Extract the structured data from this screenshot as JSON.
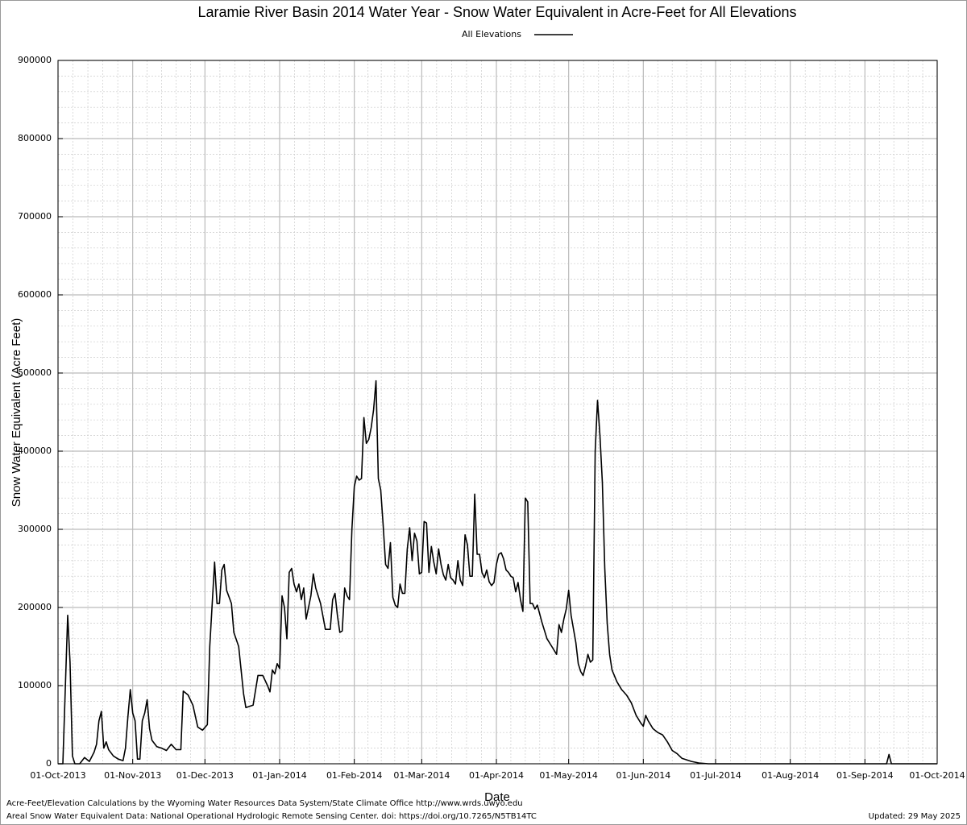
{
  "chart_data": {
    "type": "line",
    "title": "Laramie River Basin 2014 Water Year - Snow Water Equivalent in Acre-Feet for All Elevations",
    "x_label": "Date",
    "y_label": "Snow Water Equivalent (Acre Feet)",
    "footnotes": [
      "Acre-Feet/Elevation Calculations by the Wyoming Water Resources Data System/State Climate Office http://www.wrds.uwyo.edu",
      "Areal Snow Water Equivalent Data: National Operational Hydrologic Remote Sensing Center. doi: https://doi.org/10.7265/N5TB14TC"
    ],
    "updated": "Updated: 29 May 2025",
    "grid": true,
    "legend": "top",
    "xlim": [
      "2013-10-01",
      "2014-10-01"
    ],
    "xticks": [
      {
        "value": "2013-10-01",
        "label": "01-Oct-2013"
      },
      {
        "value": "2013-11-01",
        "label": "01-Nov-2013"
      },
      {
        "value": "2013-12-01",
        "label": "01-Dec-2013"
      },
      {
        "value": "2014-01-01",
        "label": "01-Jan-2014"
      },
      {
        "value": "2014-02-01",
        "label": "01-Feb-2014"
      },
      {
        "value": "2014-03-01",
        "label": "01-Mar-2014"
      },
      {
        "value": "2014-04-01",
        "label": "01-Apr-2014"
      },
      {
        "value": "2014-05-01",
        "label": "01-May-2014"
      },
      {
        "value": "2014-06-01",
        "label": "01-Jun-2014"
      },
      {
        "value": "2014-07-01",
        "label": "01-Jul-2014"
      },
      {
        "value": "2014-08-01",
        "label": "01-Aug-2014"
      },
      {
        "value": "2014-09-01",
        "label": "01-Sep-2014"
      },
      {
        "value": "2014-10-01",
        "label": "01-Oct-2014"
      }
    ],
    "ylim": [
      0,
      900000
    ],
    "yticks": [
      0,
      100000,
      200000,
      300000,
      400000,
      500000,
      600000,
      700000,
      800000,
      900000
    ],
    "x": [
      "2013-10-01",
      "2013-10-03",
      "2013-10-05",
      "2013-10-06",
      "2013-10-07",
      "2013-10-08",
      "2013-10-10",
      "2013-10-12",
      "2013-10-14",
      "2013-10-16",
      "2013-10-17",
      "2013-10-18",
      "2013-10-19",
      "2013-10-20",
      "2013-10-21",
      "2013-10-22",
      "2013-10-24",
      "2013-10-26",
      "2013-10-28",
      "2013-10-29",
      "2013-10-30",
      "2013-10-31",
      "2013-11-01",
      "2013-11-02",
      "2013-11-03",
      "2013-11-04",
      "2013-11-05",
      "2013-11-06",
      "2013-11-07",
      "2013-11-08",
      "2013-11-09",
      "2013-11-11",
      "2013-11-13",
      "2013-11-15",
      "2013-11-17",
      "2013-11-19",
      "2013-11-21",
      "2013-11-22",
      "2013-11-24",
      "2013-11-26",
      "2013-11-28",
      "2013-11-30",
      "2013-12-02",
      "2013-12-03",
      "2013-12-05",
      "2013-12-06",
      "2013-12-07",
      "2013-12-08",
      "2013-12-09",
      "2013-12-10",
      "2013-12-12",
      "2013-12-13",
      "2013-12-15",
      "2013-12-17",
      "2013-12-18",
      "2013-12-21",
      "2013-12-23",
      "2013-12-25",
      "2013-12-27",
      "2013-12-28",
      "2013-12-29",
      "2013-12-30",
      "2013-12-31",
      "2014-01-01",
      "2014-01-02",
      "2014-01-03",
      "2014-01-04",
      "2014-01-05",
      "2014-01-06",
      "2014-01-07",
      "2014-01-08",
      "2014-01-09",
      "2014-01-10",
      "2014-01-11",
      "2014-01-12",
      "2014-01-14",
      "2014-01-15",
      "2014-01-16",
      "2014-01-18",
      "2014-01-20",
      "2014-01-22",
      "2014-01-23",
      "2014-01-24",
      "2014-01-25",
      "2014-01-26",
      "2014-01-27",
      "2014-01-28",
      "2014-01-29",
      "2014-01-30",
      "2014-01-31",
      "2014-02-01",
      "2014-02-02",
      "2014-02-03",
      "2014-02-04",
      "2014-02-05",
      "2014-02-06",
      "2014-02-07",
      "2014-02-08",
      "2014-02-09",
      "2014-02-10",
      "2014-02-11",
      "2014-02-12",
      "2014-02-13",
      "2014-02-14",
      "2014-02-15",
      "2014-02-16",
      "2014-02-17",
      "2014-02-18",
      "2014-02-19",
      "2014-02-20",
      "2014-02-21",
      "2014-02-22",
      "2014-02-23",
      "2014-02-24",
      "2014-02-25",
      "2014-02-26",
      "2014-02-27",
      "2014-02-28",
      "2014-03-01",
      "2014-03-02",
      "2014-03-03",
      "2014-03-04",
      "2014-03-05",
      "2014-03-06",
      "2014-03-07",
      "2014-03-08",
      "2014-03-09",
      "2014-03-10",
      "2014-03-11",
      "2014-03-12",
      "2014-03-13",
      "2014-03-14",
      "2014-03-15",
      "2014-03-16",
      "2014-03-17",
      "2014-03-18",
      "2014-03-19",
      "2014-03-20",
      "2014-03-21",
      "2014-03-22",
      "2014-03-23",
      "2014-03-24",
      "2014-03-25",
      "2014-03-26",
      "2014-03-27",
      "2014-03-28",
      "2014-03-29",
      "2014-03-30",
      "2014-03-31",
      "2014-04-01",
      "2014-04-02",
      "2014-04-03",
      "2014-04-04",
      "2014-04-05",
      "2014-04-06",
      "2014-04-07",
      "2014-04-08",
      "2014-04-09",
      "2014-04-10",
      "2014-04-11",
      "2014-04-12",
      "2014-04-13",
      "2014-04-14",
      "2014-04-15",
      "2014-04-16",
      "2014-04-17",
      "2014-04-18",
      "2014-04-20",
      "2014-04-22",
      "2014-04-24",
      "2014-04-26",
      "2014-04-27",
      "2014-04-28",
      "2014-04-29",
      "2014-04-30",
      "2014-05-01",
      "2014-05-02",
      "2014-05-04",
      "2014-05-05",
      "2014-05-06",
      "2014-05-07",
      "2014-05-08",
      "2014-05-09",
      "2014-05-10",
      "2014-05-11",
      "2014-05-12",
      "2014-05-13",
      "2014-05-14",
      "2014-05-15",
      "2014-05-16",
      "2014-05-17",
      "2014-05-18",
      "2014-05-19",
      "2014-05-21",
      "2014-05-23",
      "2014-05-25",
      "2014-05-27",
      "2014-05-29",
      "2014-05-31",
      "2014-06-01",
      "2014-06-02",
      "2014-06-03",
      "2014-06-05",
      "2014-06-07",
      "2014-06-09",
      "2014-06-11",
      "2014-06-13",
      "2014-06-15",
      "2014-06-17",
      "2014-06-19",
      "2014-06-21",
      "2014-06-24",
      "2014-06-28",
      "2014-09-10",
      "2014-09-11",
      "2014-09-12",
      "2014-10-01"
    ],
    "series": [
      {
        "name": "All Elevations",
        "color": "#000000",
        "values": [
          0,
          0,
          190000,
          130000,
          10000,
          0,
          0,
          8000,
          3000,
          15000,
          25000,
          55000,
          67000,
          20000,
          28000,
          18000,
          10000,
          6000,
          4000,
          20000,
          60000,
          95000,
          65000,
          55000,
          6000,
          6000,
          55000,
          65000,
          82000,
          45000,
          30000,
          22000,
          20000,
          17000,
          25000,
          18000,
          18000,
          93000,
          88000,
          75000,
          47000,
          43000,
          50000,
          150000,
          258000,
          205000,
          205000,
          248000,
          255000,
          222000,
          205000,
          168000,
          150000,
          90000,
          72000,
          75000,
          113000,
          113000,
          100000,
          92000,
          120000,
          115000,
          128000,
          122000,
          215000,
          200000,
          160000,
          245000,
          250000,
          230000,
          220000,
          230000,
          210000,
          225000,
          185000,
          215000,
          243000,
          225000,
          205000,
          172000,
          172000,
          210000,
          218000,
          190000,
          168000,
          170000,
          225000,
          215000,
          210000,
          300000,
          355000,
          368000,
          363000,
          365000,
          443000,
          410000,
          415000,
          430000,
          453000,
          490000,
          365000,
          350000,
          305000,
          255000,
          250000,
          283000,
          213000,
          203000,
          200000,
          230000,
          218000,
          218000,
          275000,
          302000,
          260000,
          295000,
          285000,
          243000,
          245000,
          310000,
          308000,
          245000,
          278000,
          258000,
          243000,
          275000,
          255000,
          242000,
          235000,
          255000,
          238000,
          235000,
          230000,
          260000,
          235000,
          228000,
          293000,
          280000,
          240000,
          240000,
          345000,
          268000,
          268000,
          245000,
          238000,
          248000,
          233000,
          228000,
          232000,
          255000,
          268000,
          270000,
          262000,
          248000,
          245000,
          240000,
          238000,
          220000,
          232000,
          210000,
          195000,
          340000,
          335000,
          205000,
          205000,
          198000,
          203000,
          180000,
          160000,
          150000,
          140000,
          178000,
          168000,
          185000,
          198000,
          222000,
          190000,
          155000,
          128000,
          118000,
          113000,
          125000,
          140000,
          130000,
          133000,
          400000,
          465000,
          420000,
          360000,
          250000,
          180000,
          140000,
          120000,
          105000,
          95000,
          88000,
          78000,
          62000,
          52000,
          48000,
          62000,
          55000,
          45000,
          40000,
          37000,
          28000,
          17000,
          13000,
          7000,
          5000,
          3000,
          1000,
          0,
          0,
          12000,
          0,
          0
        ]
      }
    ]
  }
}
